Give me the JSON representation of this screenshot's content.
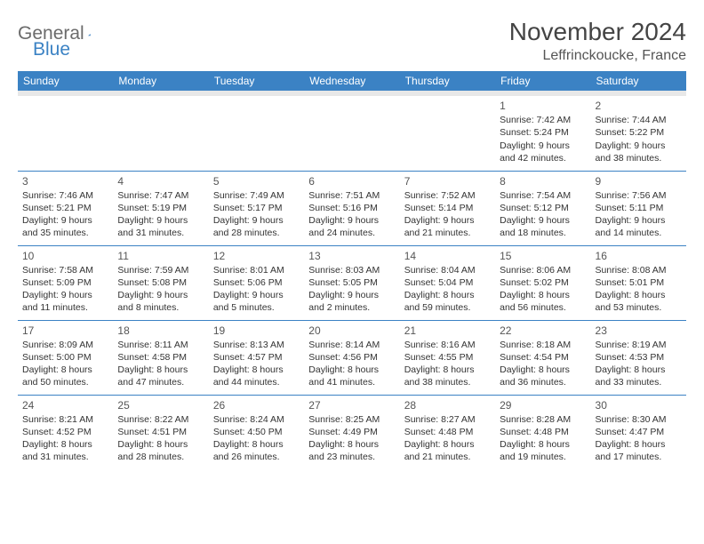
{
  "logo": {
    "text1": "General",
    "text2": "Blue"
  },
  "title": "November 2024",
  "location": "Leffrinckoucke, France",
  "weekdays": [
    "Sunday",
    "Monday",
    "Tuesday",
    "Wednesday",
    "Thursday",
    "Friday",
    "Saturday"
  ],
  "colors": {
    "header_bg": "#3b82c4",
    "header_text": "#ffffff",
    "spacer_bg": "#e8e8e8",
    "border": "#3b82c4",
    "logo_gray": "#6b6b6b",
    "logo_blue": "#3b82c4"
  },
  "weeks": [
    [
      null,
      null,
      null,
      null,
      null,
      {
        "d": "1",
        "sr": "Sunrise: 7:42 AM",
        "ss": "Sunset: 5:24 PM",
        "dl1": "Daylight: 9 hours",
        "dl2": "and 42 minutes."
      },
      {
        "d": "2",
        "sr": "Sunrise: 7:44 AM",
        "ss": "Sunset: 5:22 PM",
        "dl1": "Daylight: 9 hours",
        "dl2": "and 38 minutes."
      }
    ],
    [
      {
        "d": "3",
        "sr": "Sunrise: 7:46 AM",
        "ss": "Sunset: 5:21 PM",
        "dl1": "Daylight: 9 hours",
        "dl2": "and 35 minutes."
      },
      {
        "d": "4",
        "sr": "Sunrise: 7:47 AM",
        "ss": "Sunset: 5:19 PM",
        "dl1": "Daylight: 9 hours",
        "dl2": "and 31 minutes."
      },
      {
        "d": "5",
        "sr": "Sunrise: 7:49 AM",
        "ss": "Sunset: 5:17 PM",
        "dl1": "Daylight: 9 hours",
        "dl2": "and 28 minutes."
      },
      {
        "d": "6",
        "sr": "Sunrise: 7:51 AM",
        "ss": "Sunset: 5:16 PM",
        "dl1": "Daylight: 9 hours",
        "dl2": "and 24 minutes."
      },
      {
        "d": "7",
        "sr": "Sunrise: 7:52 AM",
        "ss": "Sunset: 5:14 PM",
        "dl1": "Daylight: 9 hours",
        "dl2": "and 21 minutes."
      },
      {
        "d": "8",
        "sr": "Sunrise: 7:54 AM",
        "ss": "Sunset: 5:12 PM",
        "dl1": "Daylight: 9 hours",
        "dl2": "and 18 minutes."
      },
      {
        "d": "9",
        "sr": "Sunrise: 7:56 AM",
        "ss": "Sunset: 5:11 PM",
        "dl1": "Daylight: 9 hours",
        "dl2": "and 14 minutes."
      }
    ],
    [
      {
        "d": "10",
        "sr": "Sunrise: 7:58 AM",
        "ss": "Sunset: 5:09 PM",
        "dl1": "Daylight: 9 hours",
        "dl2": "and 11 minutes."
      },
      {
        "d": "11",
        "sr": "Sunrise: 7:59 AM",
        "ss": "Sunset: 5:08 PM",
        "dl1": "Daylight: 9 hours",
        "dl2": "and 8 minutes."
      },
      {
        "d": "12",
        "sr": "Sunrise: 8:01 AM",
        "ss": "Sunset: 5:06 PM",
        "dl1": "Daylight: 9 hours",
        "dl2": "and 5 minutes."
      },
      {
        "d": "13",
        "sr": "Sunrise: 8:03 AM",
        "ss": "Sunset: 5:05 PM",
        "dl1": "Daylight: 9 hours",
        "dl2": "and 2 minutes."
      },
      {
        "d": "14",
        "sr": "Sunrise: 8:04 AM",
        "ss": "Sunset: 5:04 PM",
        "dl1": "Daylight: 8 hours",
        "dl2": "and 59 minutes."
      },
      {
        "d": "15",
        "sr": "Sunrise: 8:06 AM",
        "ss": "Sunset: 5:02 PM",
        "dl1": "Daylight: 8 hours",
        "dl2": "and 56 minutes."
      },
      {
        "d": "16",
        "sr": "Sunrise: 8:08 AM",
        "ss": "Sunset: 5:01 PM",
        "dl1": "Daylight: 8 hours",
        "dl2": "and 53 minutes."
      }
    ],
    [
      {
        "d": "17",
        "sr": "Sunrise: 8:09 AM",
        "ss": "Sunset: 5:00 PM",
        "dl1": "Daylight: 8 hours",
        "dl2": "and 50 minutes."
      },
      {
        "d": "18",
        "sr": "Sunrise: 8:11 AM",
        "ss": "Sunset: 4:58 PM",
        "dl1": "Daylight: 8 hours",
        "dl2": "and 47 minutes."
      },
      {
        "d": "19",
        "sr": "Sunrise: 8:13 AM",
        "ss": "Sunset: 4:57 PM",
        "dl1": "Daylight: 8 hours",
        "dl2": "and 44 minutes."
      },
      {
        "d": "20",
        "sr": "Sunrise: 8:14 AM",
        "ss": "Sunset: 4:56 PM",
        "dl1": "Daylight: 8 hours",
        "dl2": "and 41 minutes."
      },
      {
        "d": "21",
        "sr": "Sunrise: 8:16 AM",
        "ss": "Sunset: 4:55 PM",
        "dl1": "Daylight: 8 hours",
        "dl2": "and 38 minutes."
      },
      {
        "d": "22",
        "sr": "Sunrise: 8:18 AM",
        "ss": "Sunset: 4:54 PM",
        "dl1": "Daylight: 8 hours",
        "dl2": "and 36 minutes."
      },
      {
        "d": "23",
        "sr": "Sunrise: 8:19 AM",
        "ss": "Sunset: 4:53 PM",
        "dl1": "Daylight: 8 hours",
        "dl2": "and 33 minutes."
      }
    ],
    [
      {
        "d": "24",
        "sr": "Sunrise: 8:21 AM",
        "ss": "Sunset: 4:52 PM",
        "dl1": "Daylight: 8 hours",
        "dl2": "and 31 minutes."
      },
      {
        "d": "25",
        "sr": "Sunrise: 8:22 AM",
        "ss": "Sunset: 4:51 PM",
        "dl1": "Daylight: 8 hours",
        "dl2": "and 28 minutes."
      },
      {
        "d": "26",
        "sr": "Sunrise: 8:24 AM",
        "ss": "Sunset: 4:50 PM",
        "dl1": "Daylight: 8 hours",
        "dl2": "and 26 minutes."
      },
      {
        "d": "27",
        "sr": "Sunrise: 8:25 AM",
        "ss": "Sunset: 4:49 PM",
        "dl1": "Daylight: 8 hours",
        "dl2": "and 23 minutes."
      },
      {
        "d": "28",
        "sr": "Sunrise: 8:27 AM",
        "ss": "Sunset: 4:48 PM",
        "dl1": "Daylight: 8 hours",
        "dl2": "and 21 minutes."
      },
      {
        "d": "29",
        "sr": "Sunrise: 8:28 AM",
        "ss": "Sunset: 4:48 PM",
        "dl1": "Daylight: 8 hours",
        "dl2": "and 19 minutes."
      },
      {
        "d": "30",
        "sr": "Sunrise: 8:30 AM",
        "ss": "Sunset: 4:47 PM",
        "dl1": "Daylight: 8 hours",
        "dl2": "and 17 minutes."
      }
    ]
  ]
}
